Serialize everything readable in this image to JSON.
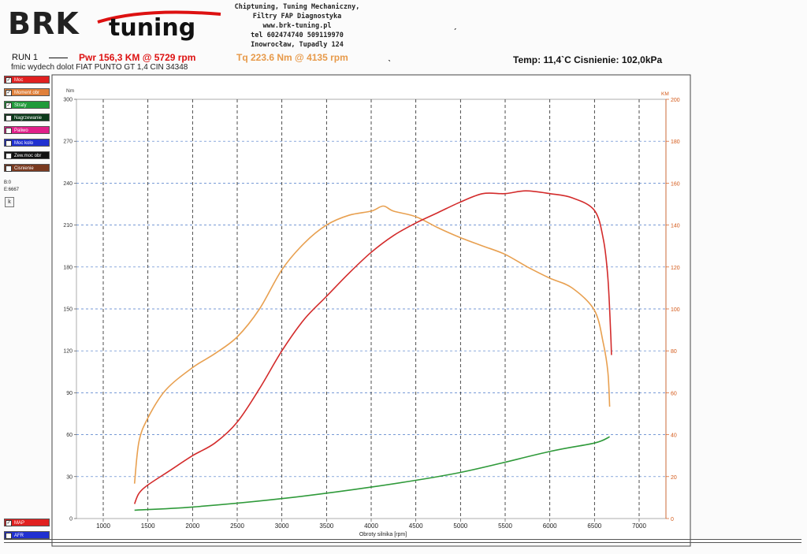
{
  "header": {
    "logo_brand": "BRK",
    "logo_tuning": "tuning",
    "company_lines": [
      "Chiptuning, Tuning Mechaniczny,",
      "Filtry FAP  Diagnostyka",
      "www.brk-tuning.pl",
      "tel 602474740 509119970",
      "Inowrocław, Tupadly 124"
    ],
    "run": "RUN 1",
    "power_summary": "Pwr  156,3 KM @ 5729 rpm",
    "torque_summary": "Tq 223.6 Nm @ 4135 rpm",
    "conditions": "Temp: 11,4`C   Cisnienie: 102,0kPa",
    "subtitle": "fmic wydech dolot FIAT PUNTO GT 1,4 CIN 34348"
  },
  "legend": [
    {
      "label": "Moc",
      "color": "#e02020",
      "checked": true
    },
    {
      "label": "Moment obr",
      "color": "#e0803a",
      "checked": true
    },
    {
      "label": "Straty",
      "color": "#1f9a3a",
      "checked": true
    },
    {
      "label": "Nagrzewanie",
      "color": "#0a3a1a",
      "checked": false
    },
    {
      "label": "Paliwo",
      "color": "#e0208a",
      "checked": false
    },
    {
      "label": "Moc kolo",
      "color": "#2030d0",
      "checked": false
    },
    {
      "label": "Zew.moc obr",
      "color": "#111111",
      "checked": false
    },
    {
      "label": "Cisnienie",
      "color": "#7a3a20",
      "checked": false
    }
  ],
  "side_info": {
    "b": "B:0",
    "e": "E:6667",
    "k_button": "k"
  },
  "bottom_legend": [
    {
      "label": "MAP",
      "color": "#e02020",
      "checked": true
    },
    {
      "label": "AFR",
      "color": "#2030d0",
      "checked": false
    }
  ],
  "colors": {
    "power": "#d32b2b",
    "torque": "#e8a050",
    "losses": "#2f9a3a",
    "grid": "#4a78c8",
    "right_axis": "#d45a1a"
  },
  "chart_data": {
    "type": "line",
    "xlabel": "Obroty silnika [rpm]",
    "ylabel_left": "Nm",
    "ylabel_right": "KM",
    "xlim": [
      700,
      7300
    ],
    "ylim_left": [
      0,
      300
    ],
    "ylim_right": [
      0,
      200
    ],
    "x_ticks": [
      1000,
      1500,
      2000,
      2500,
      3000,
      3500,
      4000,
      4500,
      5000,
      5500,
      6000,
      6500,
      7000
    ],
    "y_ticks_left": [
      0,
      30,
      60,
      90,
      120,
      150,
      180,
      210,
      240,
      270,
      300
    ],
    "y_ticks_right": [
      0,
      20,
      40,
      60,
      80,
      100,
      120,
      140,
      160,
      180,
      200
    ],
    "grid": true,
    "series": [
      {
        "name": "Moment obr",
        "axis": "left",
        "points": [
          [
            1350,
            25
          ],
          [
            1400,
            55
          ],
          [
            1500,
            72
          ],
          [
            1700,
            92
          ],
          [
            2000,
            108
          ],
          [
            2250,
            118
          ],
          [
            2500,
            130
          ],
          [
            2750,
            150
          ],
          [
            3000,
            178
          ],
          [
            3250,
            197
          ],
          [
            3500,
            210
          ],
          [
            3750,
            217
          ],
          [
            4000,
            220
          ],
          [
            4135,
            223.6
          ],
          [
            4250,
            220
          ],
          [
            4500,
            216
          ],
          [
            4750,
            208
          ],
          [
            5000,
            201
          ],
          [
            5250,
            195
          ],
          [
            5500,
            189
          ],
          [
            5750,
            180
          ],
          [
            6000,
            172
          ],
          [
            6250,
            165
          ],
          [
            6500,
            149
          ],
          [
            6600,
            125
          ],
          [
            6650,
            105
          ],
          [
            6670,
            80
          ]
        ]
      },
      {
        "name": "Moc",
        "axis": "right",
        "points": [
          [
            1350,
            7
          ],
          [
            1400,
            12
          ],
          [
            1500,
            16
          ],
          [
            1750,
            23
          ],
          [
            2000,
            30
          ],
          [
            2250,
            36
          ],
          [
            2500,
            46
          ],
          [
            2750,
            62
          ],
          [
            3000,
            80
          ],
          [
            3250,
            95
          ],
          [
            3500,
            106
          ],
          [
            3750,
            117
          ],
          [
            4000,
            127
          ],
          [
            4250,
            135
          ],
          [
            4500,
            141
          ],
          [
            4750,
            146
          ],
          [
            5000,
            151
          ],
          [
            5250,
            155
          ],
          [
            5500,
            155
          ],
          [
            5729,
            156.3
          ],
          [
            6000,
            155
          ],
          [
            6250,
            153
          ],
          [
            6500,
            147
          ],
          [
            6600,
            133
          ],
          [
            6650,
            115
          ],
          [
            6680,
            90
          ],
          [
            6690,
            78
          ]
        ]
      },
      {
        "name": "Straty",
        "axis": "right",
        "points": [
          [
            1350,
            4
          ],
          [
            2000,
            5.5
          ],
          [
            3000,
            9.5
          ],
          [
            4000,
            15
          ],
          [
            5000,
            22
          ],
          [
            6000,
            32
          ],
          [
            6500,
            36
          ],
          [
            6670,
            39
          ]
        ]
      }
    ]
  }
}
